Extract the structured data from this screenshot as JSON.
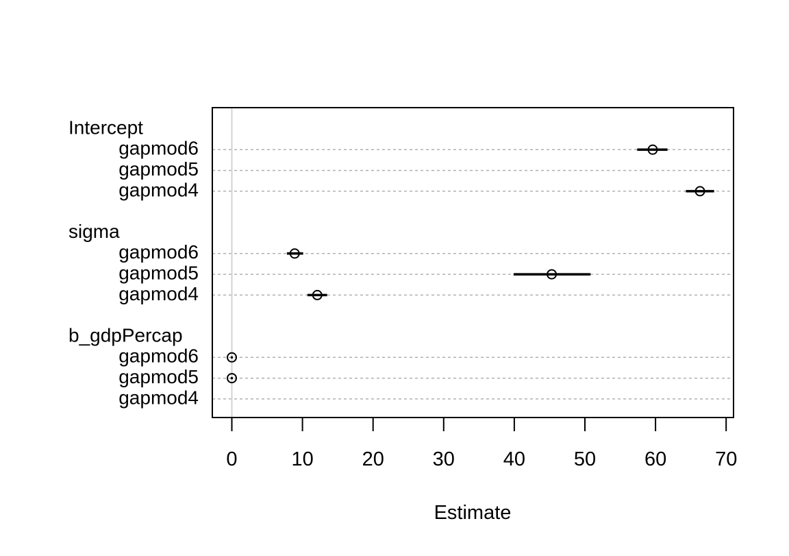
{
  "chart_data": {
    "type": "dotplot",
    "xlabel": "Estimate",
    "xlim": [
      -3,
      71
    ],
    "xticks": [
      0,
      10,
      20,
      30,
      40,
      50,
      60,
      70
    ],
    "reference_line_x": 0,
    "grid": "horizontal dashed",
    "groups": [
      {
        "name": "Intercept",
        "rows": [
          {
            "label": "gapmod6",
            "estimate": 59.6,
            "low": 57.4,
            "high": 61.7
          },
          {
            "label": "gapmod5",
            "estimate": null,
            "low": null,
            "high": null
          },
          {
            "label": "gapmod4",
            "estimate": 66.3,
            "low": 64.3,
            "high": 68.3
          }
        ]
      },
      {
        "name": "sigma",
        "rows": [
          {
            "label": "gapmod6",
            "estimate": 8.9,
            "low": 7.8,
            "high": 10.1
          },
          {
            "label": "gapmod5",
            "estimate": 45.3,
            "low": 39.9,
            "high": 50.8
          },
          {
            "label": "gapmod4",
            "estimate": 12.1,
            "low": 10.7,
            "high": 13.5
          }
        ]
      },
      {
        "name": "b_gdpPercap",
        "rows": [
          {
            "label": "gapmod6",
            "estimate": 0.0,
            "low": 0.0,
            "high": 0.0
          },
          {
            "label": "gapmod5",
            "estimate": 0.0,
            "low": 0.0,
            "high": 0.0
          },
          {
            "label": "gapmod4",
            "estimate": null,
            "low": null,
            "high": null
          }
        ]
      }
    ]
  }
}
